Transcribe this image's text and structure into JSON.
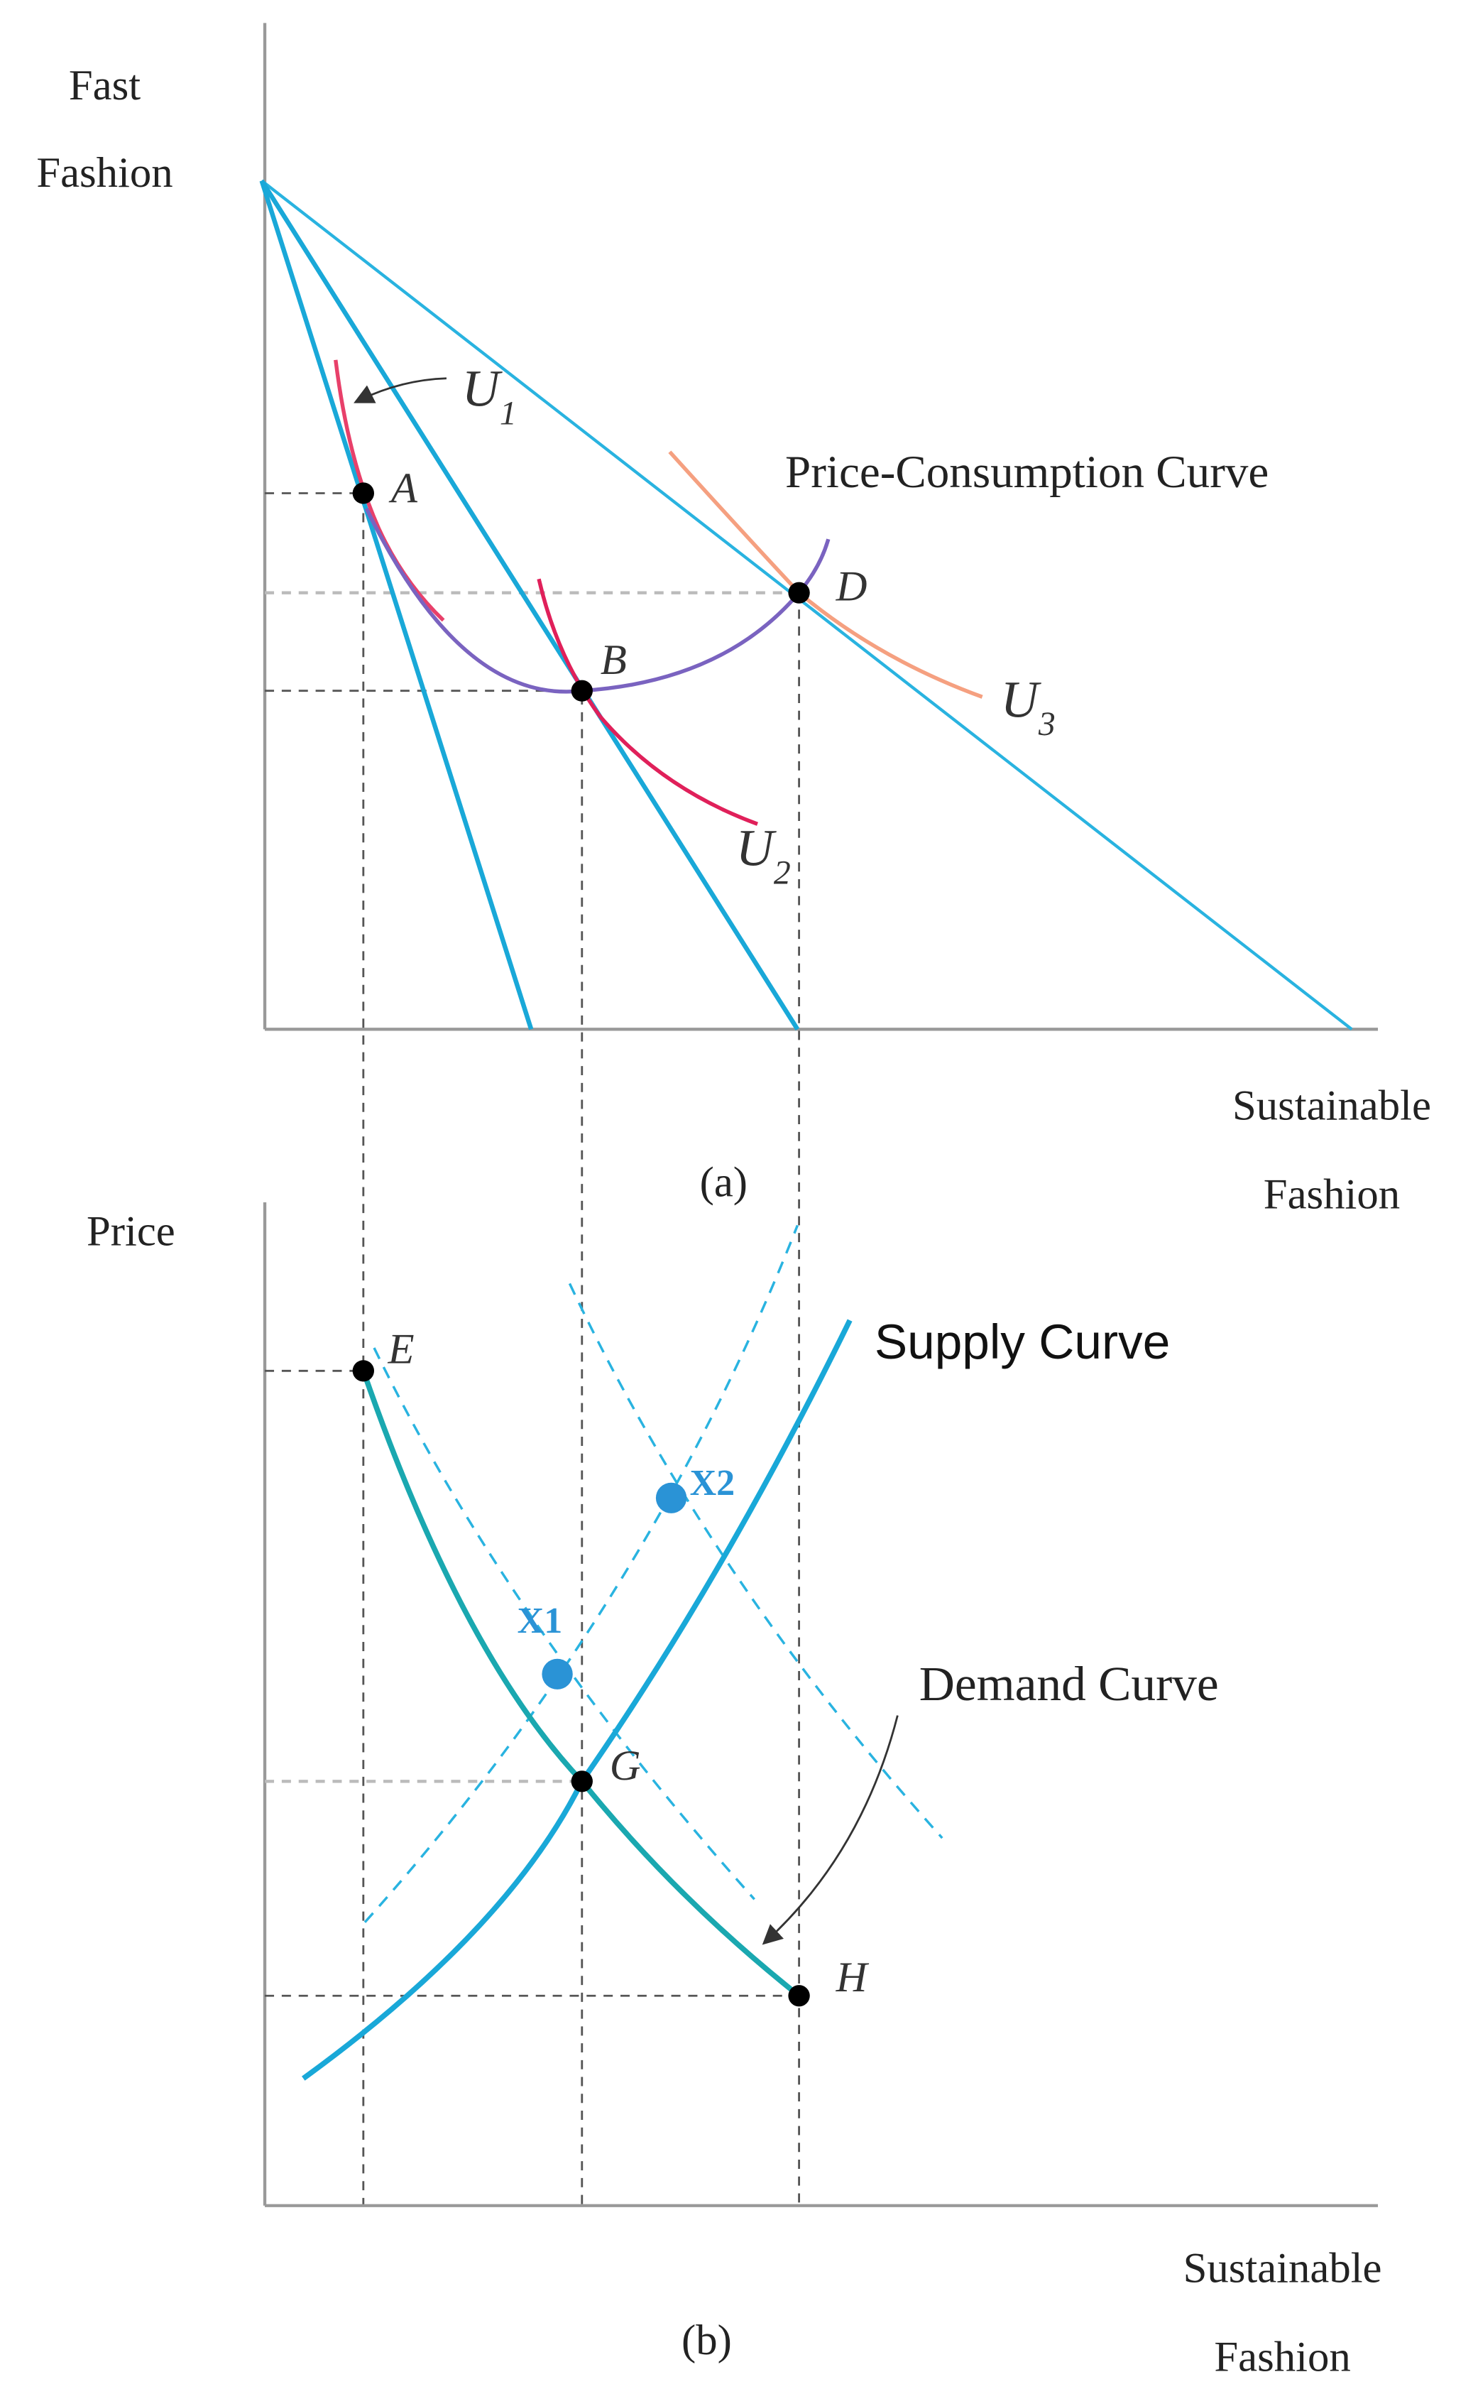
{
  "panel_a": {
    "y_label": [
      "Fast",
      "Fashion"
    ],
    "x_label": [
      "Sustainable",
      "Fashion"
    ],
    "caption": "(a)",
    "curve_label": "Price-Consumption Curve",
    "points": [
      "A",
      "B",
      "D"
    ],
    "u1": {
      "base": "U",
      "sub": "1"
    },
    "u2": {
      "base": "U",
      "sub": "2"
    },
    "u3": {
      "base": "U",
      "sub": "3"
    }
  },
  "panel_b": {
    "y_label": "Price",
    "x_label": [
      "Sustainable",
      "Fashion"
    ],
    "caption": "(b)",
    "supply_label": "Supply Curve",
    "demand_label": "Demand Curve",
    "points": [
      "E",
      "G",
      "H"
    ],
    "shift_points": [
      "X1",
      "X2"
    ]
  }
}
